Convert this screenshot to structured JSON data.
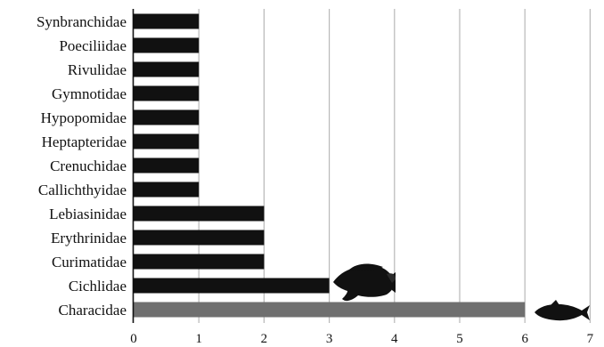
{
  "chart_data": {
    "type": "bar",
    "orientation": "horizontal",
    "title": "",
    "xlabel": "",
    "ylabel": "",
    "categories": [
      "Synbranchidae",
      "Poeciliidae",
      "Rivulidae",
      "Gymnotidae",
      "Hypopomidae",
      "Heptapteridae",
      "Crenuchidae",
      "Callichthyidae",
      "Lebiasinidae",
      "Erythrinidae",
      "Curimatidae",
      "Cichlidae",
      "Characidae"
    ],
    "values": [
      1,
      1,
      1,
      1,
      1,
      1,
      1,
      1,
      2,
      2,
      2,
      3,
      6
    ],
    "bar_colors": [
      "#111111",
      "#111111",
      "#111111",
      "#111111",
      "#111111",
      "#111111",
      "#111111",
      "#111111",
      "#111111",
      "#111111",
      "#111111",
      "#111111",
      "#6f6f6f"
    ],
    "xlim": [
      0,
      7
    ],
    "xticks": [
      0,
      1,
      2,
      3,
      4,
      5,
      6,
      7
    ],
    "grid": "vertical",
    "grid_color": "#b8b8b8",
    "legend": "none",
    "annotations": [
      {
        "icon": "cichlid-fish-icon",
        "category": "Cichlidae"
      },
      {
        "icon": "characid-fish-icon",
        "category": "Characidae"
      }
    ]
  }
}
